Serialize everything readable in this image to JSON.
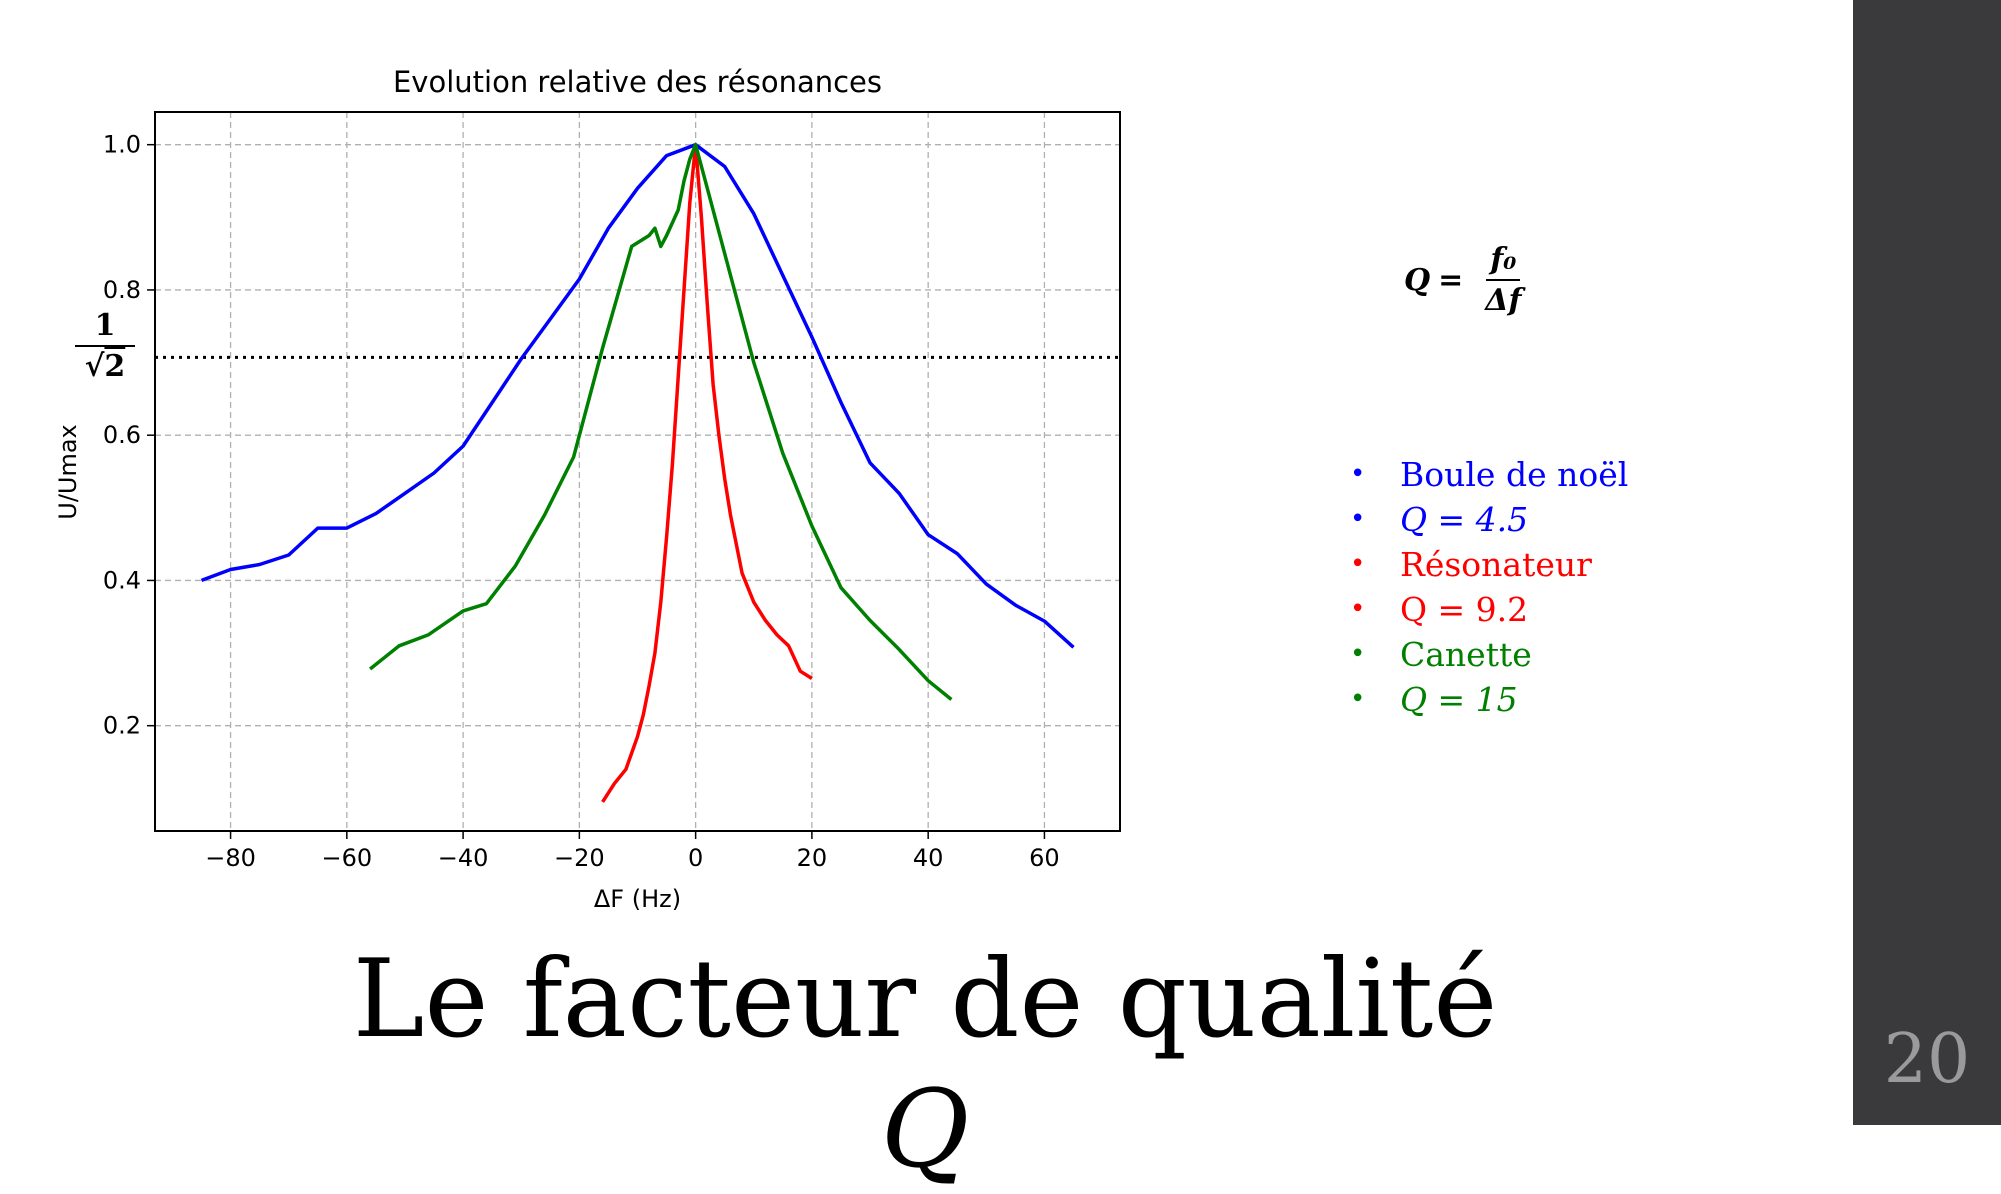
{
  "slide": {
    "title_text": "Le facteur de qualité ",
    "title_symbol": "Q",
    "slide_number": "20",
    "background_color": "#ffffff",
    "sidebar_color": "#3a3a3c"
  },
  "formula": {
    "lhs": "Q",
    "eq": "=",
    "numerator": "f₀",
    "denominator": "Δf"
  },
  "annotation": {
    "numerator": "1",
    "denominator_sqrt": "2",
    "denominator_sign": "√"
  },
  "legend_items": [
    {
      "text": "Boule de noël",
      "color": "#0000ff",
      "italic": false
    },
    {
      "text": "Q = 4.5",
      "color": "#0000ff",
      "italic": true
    },
    {
      "text": "Résonateur",
      "color": "#ff0000",
      "italic": false
    },
    {
      "text": "Q = 9.2",
      "color": "#ff0000",
      "italic": false
    },
    {
      "text": "Canette",
      "color": "#008000",
      "italic": false
    },
    {
      "text": "Q = 15",
      "color": "#008000",
      "italic": true
    }
  ],
  "chart_data": {
    "type": "line",
    "title": "Evolution relative des résonances",
    "xlabel": "ΔF (Hz)",
    "ylabel": "U/Umax",
    "xlim": [
      -93,
      73
    ],
    "ylim": [
      0.055,
      1.045
    ],
    "xticks": [
      -80,
      -60,
      -40,
      -20,
      0,
      20,
      40,
      60
    ],
    "xtick_labels": [
      "−80",
      "−60",
      "−40",
      "−20",
      "0",
      "20",
      "40",
      "60"
    ],
    "yticks": [
      0.2,
      0.4,
      0.6,
      0.8,
      1.0
    ],
    "ytick_labels": [
      "0.2",
      "0.4",
      "0.6",
      "0.8",
      "1.0"
    ],
    "grid": true,
    "reference_line": {
      "y": 0.7071,
      "style": "dotted",
      "color": "#000000"
    },
    "series": [
      {
        "color": "#0000ff",
        "x": [
          -85,
          -80,
          -75,
          -70,
          -65,
          -60,
          -55,
          -50,
          -45,
          -40,
          -35,
          -30,
          -25,
          -20,
          -15,
          -10,
          -5,
          0,
          5,
          10,
          15,
          20,
          25,
          30,
          35,
          40,
          45,
          50,
          55,
          60,
          65
        ],
        "y": [
          0.4,
          0.415,
          0.422,
          0.435,
          0.472,
          0.472,
          0.492,
          0.52,
          0.548,
          0.585,
          0.645,
          0.705,
          0.76,
          0.815,
          0.885,
          0.94,
          0.985,
          1.0,
          0.97,
          0.905,
          0.82,
          0.735,
          0.645,
          0.562,
          0.52,
          0.463,
          0.437,
          0.395,
          0.366,
          0.344,
          0.308
        ]
      },
      {
        "color": "#ff0000",
        "x": [
          -16,
          -14,
          -12,
          -10,
          -9,
          -8,
          -7,
          -6,
          -5,
          -4,
          -3,
          -2,
          -1,
          0,
          1,
          2,
          3,
          4,
          5,
          6,
          7,
          8,
          10,
          12,
          14,
          16,
          18,
          20
        ],
        "y": [
          0.095,
          0.12,
          0.14,
          0.185,
          0.215,
          0.255,
          0.3,
          0.37,
          0.46,
          0.56,
          0.68,
          0.8,
          0.92,
          1.0,
          0.9,
          0.78,
          0.67,
          0.6,
          0.54,
          0.49,
          0.45,
          0.41,
          0.37,
          0.345,
          0.325,
          0.31,
          0.275,
          0.265
        ]
      },
      {
        "color": "#008000",
        "x": [
          -56,
          -51,
          -46,
          -40,
          -36,
          -31,
          -26,
          -21,
          -16,
          -11,
          -8,
          -7,
          -6,
          -5,
          -3,
          -2,
          -1,
          0,
          2,
          5,
          10,
          15,
          20,
          25,
          30,
          35,
          40,
          44
        ],
        "y": [
          0.278,
          0.31,
          0.325,
          0.358,
          0.368,
          0.42,
          0.49,
          0.57,
          0.72,
          0.86,
          0.875,
          0.885,
          0.86,
          0.875,
          0.91,
          0.95,
          0.98,
          1.0,
          0.94,
          0.85,
          0.7,
          0.575,
          0.475,
          0.39,
          0.345,
          0.305,
          0.262,
          0.236
        ]
      }
    ]
  }
}
